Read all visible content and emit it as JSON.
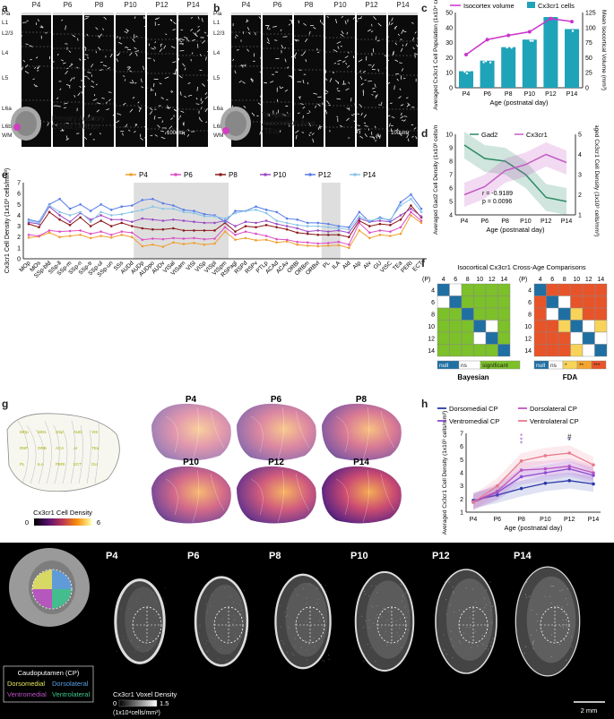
{
  "panel_letters": {
    "a": "a",
    "b": "b",
    "c": "c",
    "d": "d",
    "e": "e",
    "f": "f",
    "g": "g",
    "h": "h",
    "i": "i"
  },
  "ages": [
    "P4",
    "P6",
    "P8",
    "P10",
    "P12",
    "P14"
  ],
  "layers": [
    "Pia",
    "L1",
    "L2/3",
    "L4",
    "L5",
    "L6a",
    "L6b",
    "WM"
  ],
  "panel_a": {
    "caption": "Primary Auditory Cortex (AUDp)",
    "scale": "100um"
  },
  "panel_b": {
    "caption": "Temporal Association Area (TEa)",
    "scale": "100um"
  },
  "chart_data": [
    {
      "id": "c",
      "type": "bar+line",
      "categories": [
        "P4",
        "P6",
        "P8",
        "P10",
        "P12",
        "P14"
      ],
      "series": [
        {
          "name": "Cx3cr1 cells",
          "type": "bar",
          "color": "#1fa3b8",
          "values": [
            11,
            18,
            27,
            32,
            47,
            39
          ]
        },
        {
          "name": "Isocortex volume",
          "type": "line",
          "color": "#cc33cc",
          "values": [
            55,
            80,
            87,
            93,
            115,
            110
          ]
        }
      ],
      "ylabel": "Averaged Cx3cr1 Cell Population (1x10⁴ cells)",
      "y2label": "Mean Isocortical Volume (mm³)",
      "xlabel": "Age (postnatal day)",
      "ylim": [
        0,
        50
      ],
      "y2lim": [
        0,
        125
      ],
      "yticks": [
        "0",
        "10",
        "20",
        "30",
        "40",
        "50"
      ],
      "y2ticks": [
        "0",
        "25",
        "50",
        "75",
        "100",
        "125"
      ]
    },
    {
      "id": "d",
      "type": "line",
      "categories": [
        "P4",
        "P6",
        "P8",
        "P10",
        "P12",
        "P14"
      ],
      "series": [
        {
          "name": "Gad2",
          "color": "#2a8a64",
          "values": [
            9.2,
            8.2,
            8.0,
            7.0,
            5.3,
            5.0
          ]
        },
        {
          "name": "Cx3cr1",
          "color": "#c45cc4",
          "values": [
            2.0,
            2.4,
            3.2,
            3.5,
            4.0,
            3.6
          ]
        }
      ],
      "ylabel": "Averaged Gad2 Cell Density (1x10³ cells/mm³)",
      "y2label": "Averaged Cx3cr1 Cell Density (1x10³ cells/mm³)",
      "xlabel": "Age (postnatal day)",
      "ylim": [
        4,
        10
      ],
      "y2lim": [
        1,
        5
      ],
      "yticks": [
        "4",
        "5",
        "6",
        "7",
        "8",
        "9",
        "10"
      ],
      "y2ticks": [
        "1",
        "2",
        "3",
        "4",
        "5"
      ],
      "annotation": [
        "r = -0.9189",
        "p = 0.0096"
      ]
    },
    {
      "id": "e",
      "type": "line",
      "ylabel": "Cx3cr1 Cell Density (1x10³ cells/mm³)",
      "ylim": [
        0,
        7
      ],
      "yticks": [
        "0",
        "1",
        "2",
        "3",
        "4",
        "5",
        "6",
        "7"
      ],
      "categories": [
        "MOp",
        "MOs",
        "SSp-bfd",
        "SSp-ll",
        "SSp-m",
        "SSp-n",
        "SSp-tr",
        "SSp-ul",
        "SSp-un",
        "SSs",
        "AUDd",
        "AUDp",
        "AUDpo",
        "AUDv",
        "VISal",
        "VISam",
        "VISl",
        "VISp",
        "VISpl",
        "VISpm",
        "RSPagl",
        "RSPd",
        "RSPv",
        "PTLp",
        "ACAd",
        "ACAv",
        "ORBl",
        "ORBm",
        "ORBvl",
        "PL",
        "ILA",
        "AId",
        "AIp",
        "AIv",
        "GU",
        "VISC",
        "TEa",
        "PERI",
        "ECT"
      ],
      "series": [
        {
          "name": "P4",
          "color": "#f0a030",
          "values": [
            1.95,
            2.05,
            2.4,
            2.0,
            2.1,
            2.2,
            1.9,
            2.1,
            1.95,
            2.2,
            2.0,
            1.15,
            1.3,
            1.1,
            1.5,
            1.35,
            1.45,
            1.3,
            1.4,
            2.5,
            1.75,
            1.9,
            1.7,
            1.75,
            1.5,
            1.6,
            1.3,
            1.2,
            1.15,
            1.2,
            1.25,
            1.0,
            2.6,
            1.9,
            2.2,
            2.1,
            2.3,
            4.0,
            3.3
          ]
        },
        {
          "name": "P6",
          "color": "#dd4fc4",
          "values": [
            2.2,
            2.1,
            2.6,
            2.5,
            2.55,
            2.6,
            2.3,
            2.5,
            2.2,
            2.5,
            2.4,
            1.75,
            1.85,
            1.8,
            1.9,
            1.85,
            1.9,
            1.8,
            1.85,
            2.9,
            2.2,
            2.5,
            2.3,
            2.1,
            1.8,
            1.75,
            1.55,
            1.5,
            1.4,
            1.45,
            1.55,
            1.3,
            3.3,
            2.4,
            2.6,
            2.5,
            2.9,
            4.3,
            3.5
          ]
        },
        {
          "name": "P8",
          "color": "#8b1a1a",
          "values": [
            3.2,
            2.9,
            4.3,
            3.6,
            3.1,
            3.8,
            3.0,
            3.5,
            3.0,
            3.3,
            3.0,
            2.8,
            2.7,
            2.7,
            2.8,
            2.6,
            2.6,
            2.6,
            2.6,
            3.3,
            2.5,
            3.0,
            2.9,
            3.1,
            2.9,
            2.7,
            2.4,
            2.3,
            2.2,
            2.2,
            2.2,
            2.0,
            3.5,
            3.0,
            3.2,
            3.1,
            3.6,
            4.9,
            3.8
          ]
        },
        {
          "name": "P10",
          "color": "#9d4bc4",
          "values": [
            3.35,
            3.2,
            4.8,
            4.0,
            3.4,
            4.2,
            3.6,
            4.0,
            3.6,
            3.6,
            3.4,
            3.7,
            3.6,
            3.5,
            3.6,
            3.5,
            3.4,
            3.3,
            3.3,
            3.5,
            3.0,
            3.4,
            3.3,
            3.5,
            3.2,
            3.0,
            2.8,
            2.5,
            2.6,
            2.5,
            2.6,
            2.4,
            3.7,
            3.4,
            3.5,
            3.4,
            4.0,
            4.6,
            3.9
          ]
        },
        {
          "name": "P12",
          "color": "#5a7ee8",
          "values": [
            3.6,
            3.4,
            5.0,
            5.5,
            4.6,
            5.0,
            4.4,
            5.0,
            4.5,
            4.8,
            4.9,
            5.4,
            5.5,
            5.1,
            4.9,
            4.5,
            4.4,
            4.1,
            4.0,
            3.4,
            4.4,
            4.4,
            4.8,
            4.5,
            4.3,
            3.7,
            3.6,
            3.3,
            3.3,
            3.2,
            3.0,
            2.9,
            4.3,
            3.4,
            3.8,
            3.5,
            5.2,
            5.9,
            4.6
          ]
        },
        {
          "name": "P14",
          "color": "#88c4e8",
          "values": [
            3.5,
            3.3,
            4.9,
            4.3,
            4.0,
            4.3,
            3.4,
            4.3,
            4.0,
            4.1,
            4.3,
            4.5,
            4.8,
            4.6,
            4.6,
            4.3,
            4.2,
            3.9,
            3.9,
            3.7,
            4.2,
            4.4,
            4.5,
            4.2,
            3.5,
            3.3,
            3.1,
            3.0,
            3.0,
            2.9,
            2.8,
            2.7,
            3.9,
            3.5,
            3.7,
            3.6,
            4.9,
            5.5,
            4.3
          ]
        }
      ]
    },
    {
      "id": "h",
      "type": "line",
      "categories": [
        "P4",
        "P6",
        "P8",
        "P10",
        "P12",
        "P14"
      ],
      "series": [
        {
          "name": "Dorsomedial CP",
          "color": "#2a3aa8",
          "values": [
            1.9,
            2.3,
            2.8,
            3.2,
            3.4,
            3.15
          ]
        },
        {
          "name": "Dorsolateral CP",
          "color": "#c055c0",
          "values": [
            1.8,
            2.6,
            4.2,
            4.3,
            4.5,
            4.0
          ]
        },
        {
          "name": "Ventromedial CP",
          "color": "#8a4dd0",
          "values": [
            1.75,
            2.5,
            3.7,
            4.0,
            4.3,
            3.8
          ]
        },
        {
          "name": "Ventrolateral CP",
          "color": "#e87a8a",
          "values": [
            1.75,
            3.0,
            4.9,
            5.3,
            5.5,
            4.6
          ]
        }
      ],
      "ylabel": "Averaged Cx3cr1 Cell Density (1x10³ cells/mm³)",
      "xlabel": "Age (postnatal day)",
      "ylim": [
        1,
        7
      ],
      "yticks": [
        "1",
        "2",
        "3",
        "4",
        "5",
        "6",
        "7"
      ],
      "markers": [
        "*",
        "*",
        "*",
        "#",
        "*"
      ]
    }
  ],
  "panel_f": {
    "title": "Isocortical Cx3cr1 Cross-Age Comparisons",
    "p_label": "(P)",
    "ages": [
      "4",
      "6",
      "8",
      "10",
      "12",
      "14"
    ],
    "left_legend": [
      "null",
      "ns",
      "significant"
    ],
    "left_name": "Bayesian",
    "right_legend": [
      "null",
      "ns",
      "*",
      "**",
      "***"
    ],
    "right_name": "FDA",
    "colors": {
      "null": "#1f6fa3",
      "ns": "#ffffff",
      "significant": "#7cc02a",
      "s1": "#f7d35a",
      "s2": "#f3a530",
      "s3": "#e8542a"
    }
  },
  "panel_g": {
    "colorbar_title": "Cx3cr1 Cell Density",
    "colorbar_min": "0",
    "colorbar_max": "6",
    "colorbar_unit": "(1x10³ cells/mm³)",
    "region_labels": [
      "MOp",
      "MOs",
      "SSp",
      "AUD",
      "VIS",
      "RSP",
      "ORB",
      "ACA",
      "AI",
      "TEa",
      "PL",
      "ILA",
      "PERI",
      "ECT",
      "GU"
    ]
  },
  "panel_i": {
    "legend_title": "Caudoputamen (CP)",
    "regions": [
      "Dorsomedial",
      "Dorsolateral",
      "Ventromedial",
      "Ventrolateral"
    ],
    "region_colors": [
      "#e8e860",
      "#5aa0e8",
      "#c050c8",
      "#3ac890"
    ],
    "colorbar_title": "Cx3cr1 Voxel Density",
    "colorbar_min": "0",
    "colorbar_max": "1.5",
    "colorbar_unit": "(1x10⁴cells/mm³)",
    "scale": "2 mm"
  }
}
